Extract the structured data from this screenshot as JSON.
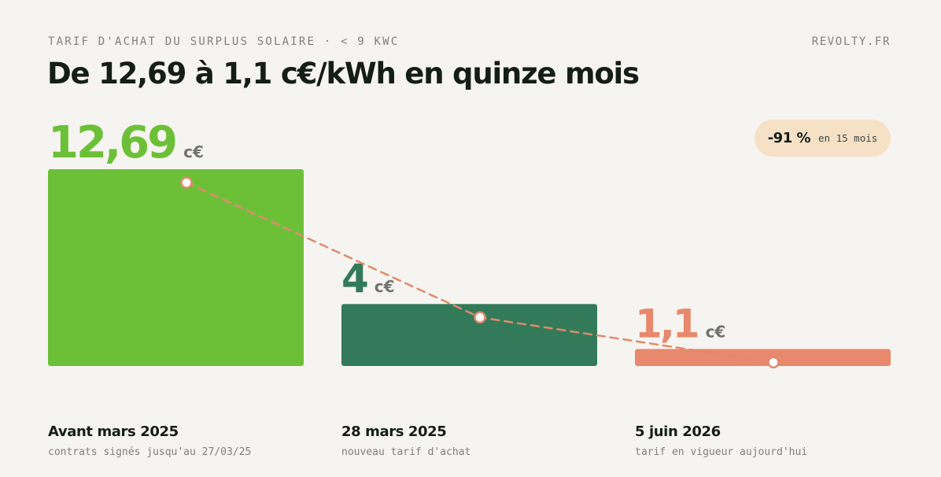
{
  "header": {
    "eyebrow": "TARIF D'ACHAT DU SURPLUS SOLAIRE · < 9 KWC",
    "brand": "REVOLTY.FR",
    "title": "De 12,69 à 1,1 c€/kWh en quinze mois"
  },
  "badge": {
    "value": "-91 %",
    "caption": "en 15 mois"
  },
  "chart_data": {
    "type": "bar",
    "title": "De 12,69 à 1,1 c€/kWh en quinze mois",
    "unit": "c€",
    "ylim": [
      0,
      14.2
    ],
    "grid": false,
    "categories": [
      "Avant mars 2025",
      "28 mars 2025",
      "5 juin 2026"
    ],
    "sublabels": [
      "contrats signés jusqu'au 27/03/25",
      "nouveau tarif d'achat",
      "tarif en vigueur aujourd'hui"
    ],
    "values": [
      12.69,
      4,
      1.1
    ],
    "value_labels": [
      "12,69",
      "4",
      "1,1"
    ],
    "colors": [
      "#6cc038",
      "#327a59",
      "#e8886c"
    ],
    "trend_line": {
      "style": "dashed",
      "color": "#e08a6c"
    }
  }
}
